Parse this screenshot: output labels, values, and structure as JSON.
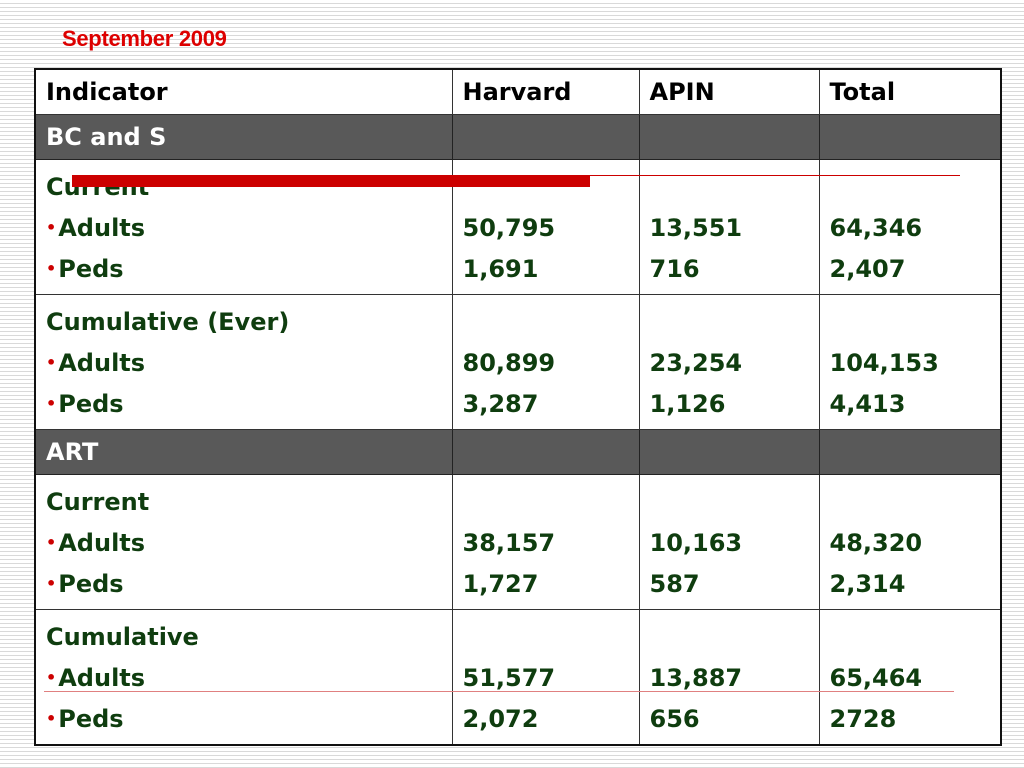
{
  "title": "September 2009",
  "table": {
    "headers": [
      "Indicator",
      "Harvard",
      "APIN",
      "Total"
    ],
    "sections": [
      {
        "label": "BC and S",
        "groups": [
          {
            "label": "Current",
            "rows": [
              {
                "label": "Adults",
                "harvard": "50,795",
                "apin": "13,551",
                "total": "64,346"
              },
              {
                "label": "Peds",
                "harvard": "1,691",
                "apin": "716",
                "total": "2,407"
              }
            ]
          },
          {
            "label": "Cumulative (Ever)",
            "rows": [
              {
                "label": "Adults",
                "harvard": "80,899",
                "apin": "23,254",
                "total": "104,153"
              },
              {
                "label": "Peds",
                "harvard": "3,287",
                "apin": "1,126",
                "total": "4,413"
              }
            ]
          }
        ]
      },
      {
        "label": "ART",
        "groups": [
          {
            "label": "Current",
            "rows": [
              {
                "label": "Adults",
                "harvard": "38,157",
                "apin": "10,163",
                "total": "48,320"
              },
              {
                "label": "Peds",
                "harvard": "1,727",
                "apin": "587",
                "total": "2,314"
              }
            ]
          },
          {
            "label": "Cumulative",
            "rows": [
              {
                "label": "Adults",
                "harvard": "51,577",
                "apin": "13,887",
                "total": "65,464"
              },
              {
                "label": "Peds",
                "harvard": "2,072",
                "apin": "656",
                "total": "2728"
              }
            ]
          }
        ]
      }
    ]
  },
  "colors": {
    "title": "#dd0000",
    "section_background": "#595959",
    "indicator_text": "#0f3d0f",
    "bullet": "#cc0000",
    "strike_bar": "#cc0000"
  }
}
